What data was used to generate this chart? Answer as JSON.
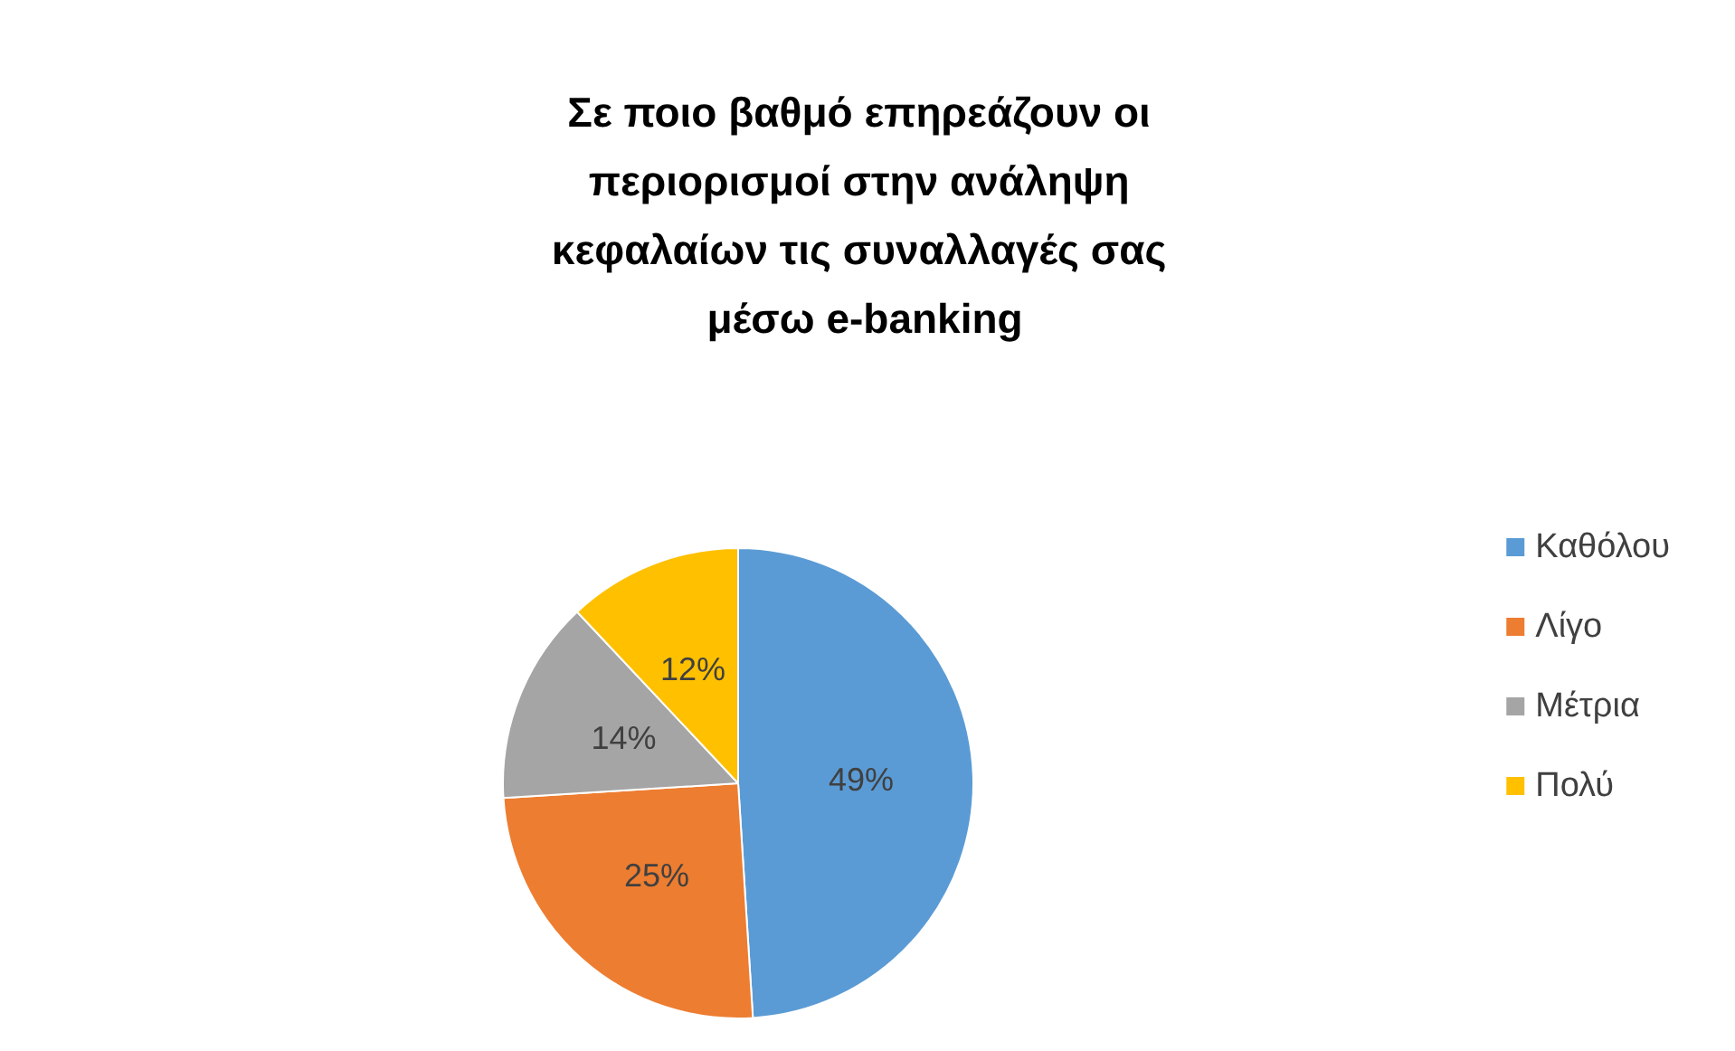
{
  "chart_data": {
    "type": "pie",
    "title": "Σε ποιο βαθμό επηρεάζουν οι περιορισμοί στην ανάληψη κεφαλαίων τις συναλλαγές σας μέσω e-banking",
    "categories": [
      "Καθόλου",
      "Λίγο",
      "Μέτρια",
      "Πολύ"
    ],
    "values": [
      49,
      25,
      14,
      12
    ],
    "colors": [
      "#5b9bd5",
      "#ed7d31",
      "#a5a5a5",
      "#ffc000"
    ],
    "value_labels": [
      "49%",
      "25%",
      "14%",
      "12%"
    ],
    "legend": "right"
  }
}
